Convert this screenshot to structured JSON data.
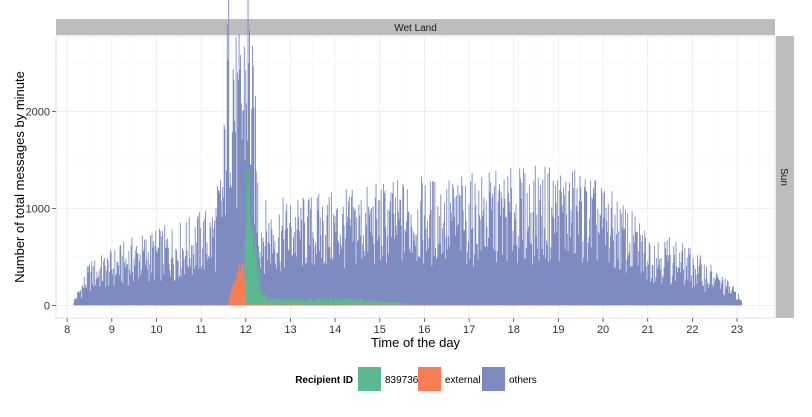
{
  "chart_data": {
    "type": "area",
    "facet_top": "Wet Land",
    "facet_right": "Sun",
    "xlabel": "Time of the day",
    "ylabel": "Number of total messages by minute",
    "xlim": [
      7.75,
      23.85
    ],
    "ylim": [
      -130,
      2780
    ],
    "x_ticks": [
      8,
      9,
      10,
      11,
      12,
      13,
      14,
      15,
      16,
      17,
      18,
      19,
      20,
      21,
      22,
      23
    ],
    "y_ticks": [
      0,
      1000,
      2000
    ],
    "grid": true,
    "legend": {
      "title": "Recipient ID",
      "position": "bottom",
      "entries": [
        {
          "label": "839736",
          "color": "#5ab990"
        },
        {
          "label": "external",
          "color": "#f87d54"
        },
        {
          "label": "others",
          "color": "#7e8bc0"
        }
      ]
    },
    "series": [
      {
        "name": "others",
        "color": "#7e8bc0",
        "x": [
          8.15,
          8.5,
          9.0,
          9.5,
          10.0,
          10.5,
          11.0,
          11.3,
          11.5,
          11.6,
          11.7,
          11.8,
          11.9,
          12.0,
          12.05,
          12.1,
          12.2,
          12.3,
          12.5,
          13.0,
          13.5,
          14.0,
          14.5,
          15.0,
          15.5,
          16.0,
          16.5,
          17.0,
          17.5,
          18.0,
          18.5,
          19.0,
          19.5,
          20.0,
          20.5,
          21.0,
          21.5,
          22.0,
          22.5,
          23.0,
          23.1
        ],
        "y": [
          40,
          300,
          380,
          470,
          520,
          560,
          640,
          700,
          1100,
          2200,
          2450,
          1750,
          1900,
          2200,
          2600,
          2000,
          1550,
          750,
          700,
          730,
          750,
          770,
          790,
          830,
          850,
          860,
          870,
          880,
          900,
          920,
          930,
          950,
          920,
          820,
          680,
          520,
          470,
          380,
          260,
          110,
          30
        ]
      },
      {
        "name": "839736",
        "color": "#5ab990",
        "x": [
          11.95,
          12.0,
          12.05,
          12.15,
          12.25,
          12.35,
          12.5,
          13.0,
          13.5,
          14.0,
          14.5,
          15.0,
          15.5,
          15.8
        ],
        "y": [
          0,
          950,
          1250,
          800,
          420,
          140,
          70,
          60,
          60,
          75,
          55,
          40,
          30,
          0
        ]
      },
      {
        "name": "external",
        "color": "#f87d54",
        "x": [
          8.2,
          11.6,
          11.75,
          11.8,
          11.9,
          11.95,
          12.0,
          12.5,
          15.8,
          16.0,
          23.1
        ],
        "y": [
          3,
          5,
          270,
          300,
          360,
          400,
          15,
          10,
          8,
          5,
          3
        ]
      }
    ]
  }
}
